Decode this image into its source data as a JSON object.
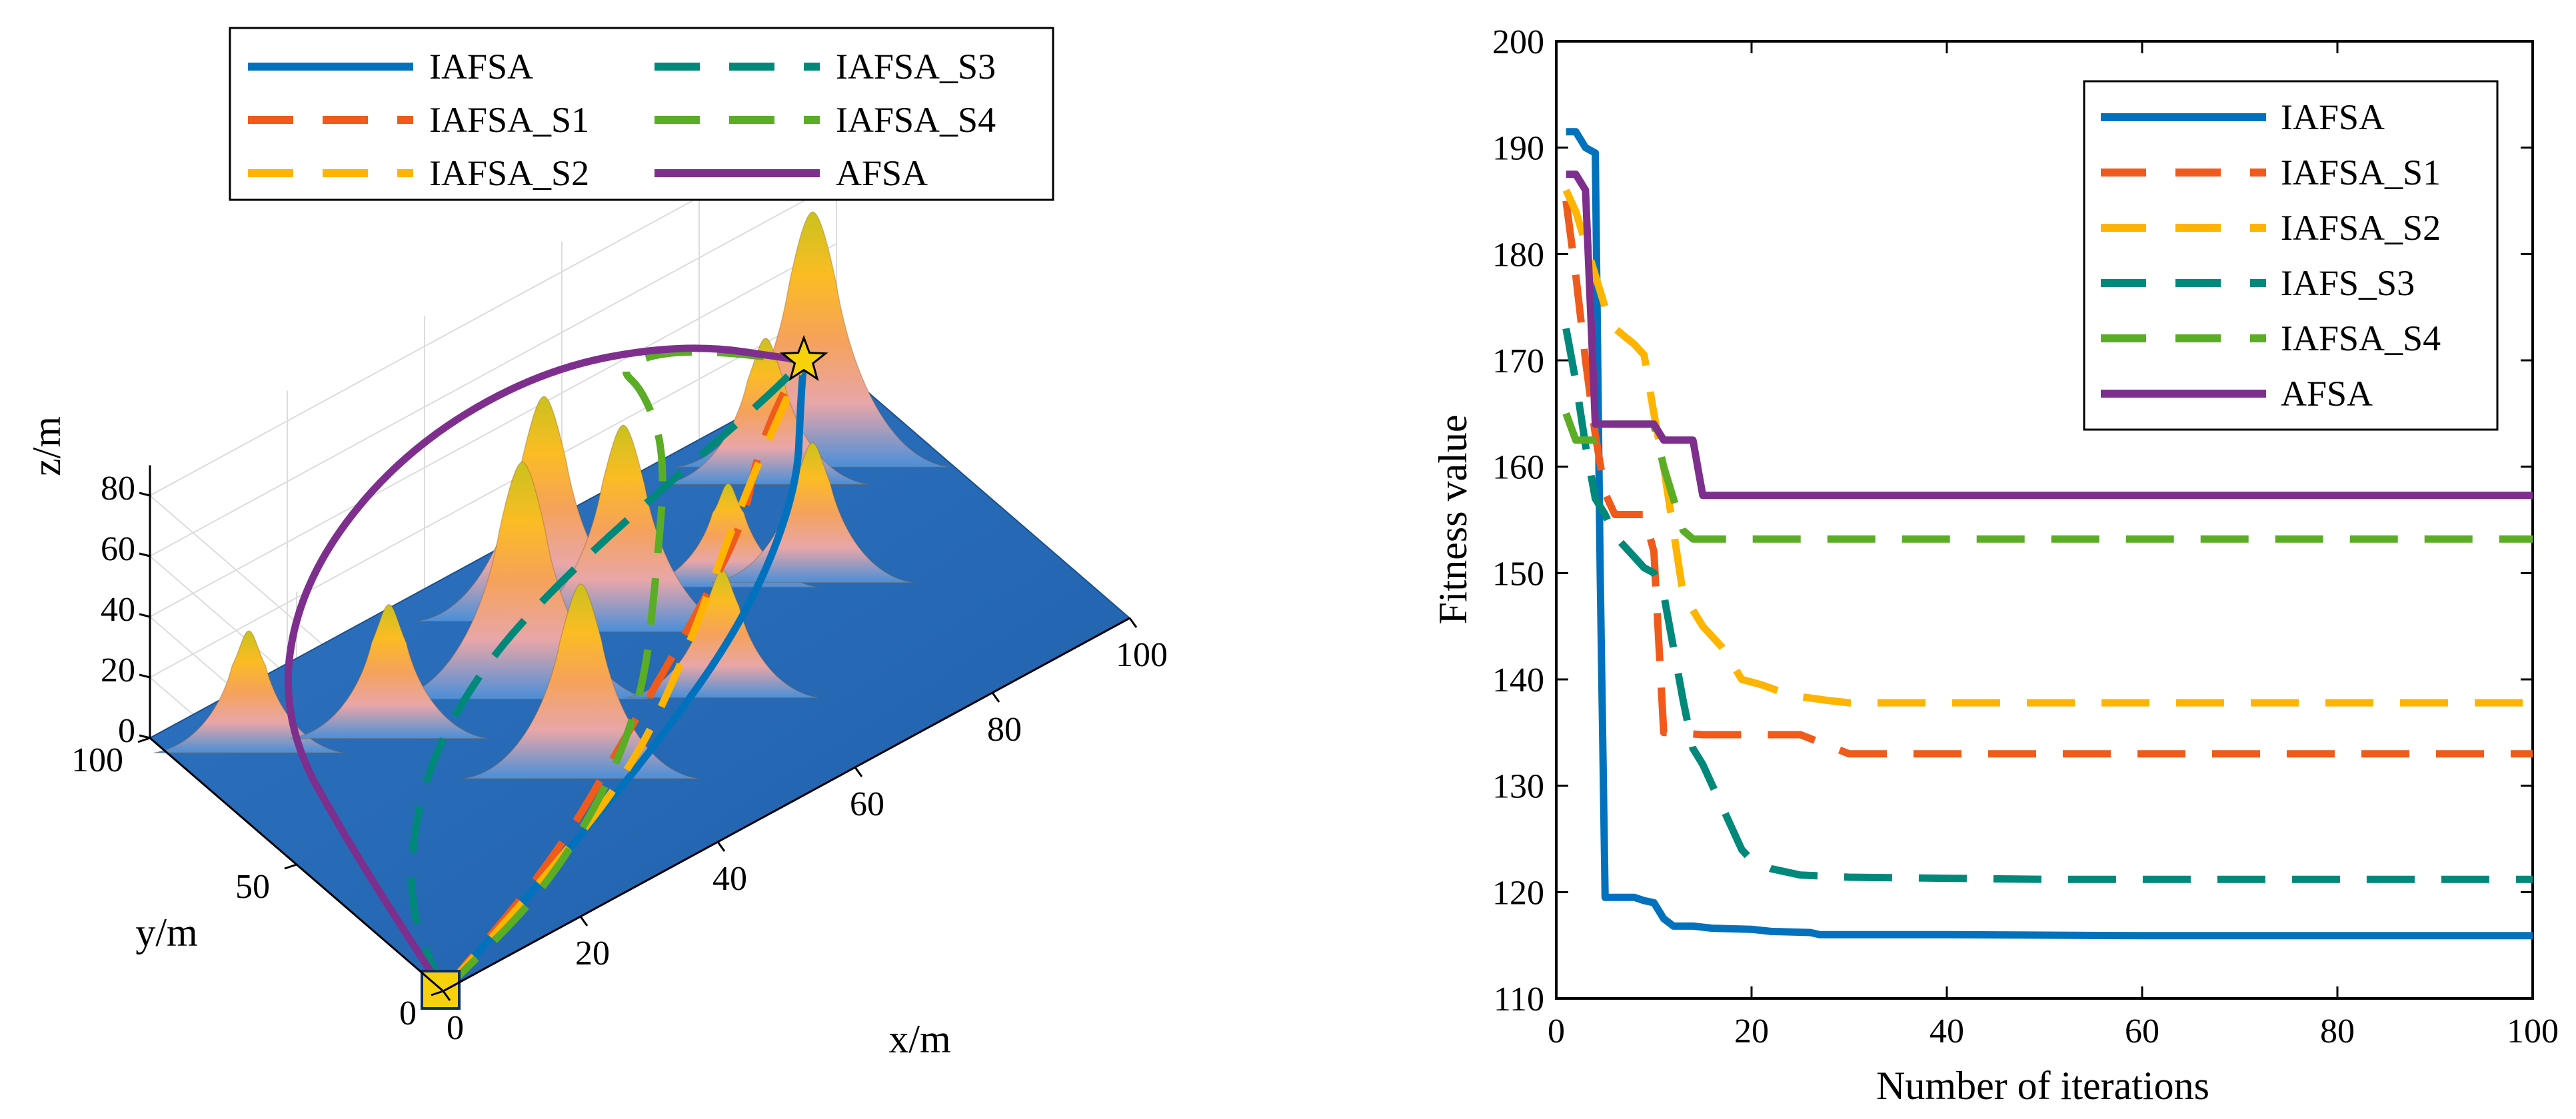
{
  "chart_data": [
    {
      "type": "surface3d",
      "xlabel": "x/m",
      "ylabel": "y/m",
      "zlabel": "z/m",
      "xticks": [
        0,
        20,
        40,
        60,
        80,
        100
      ],
      "yticks": [
        0,
        50,
        100
      ],
      "zticks": [
        0,
        20,
        40,
        60,
        80
      ],
      "xlim": [
        0,
        100
      ],
      "ylim": [
        0,
        100
      ],
      "zlim": [
        0,
        90
      ],
      "grid": true,
      "legend_placement": "top",
      "start_marker": "square",
      "goal_marker": "star",
      "peaks": [
        {
          "x": 8,
          "y": 85,
          "h": 38
        },
        {
          "x": 22,
          "y": 70,
          "h": 42
        },
        {
          "x": 38,
          "y": 62,
          "h": 76
        },
        {
          "x": 48,
          "y": 78,
          "h": 72
        },
        {
          "x": 54,
          "y": 65,
          "h": 66
        },
        {
          "x": 35,
          "y": 35,
          "h": 62
        },
        {
          "x": 56,
          "y": 36,
          "h": 40
        },
        {
          "x": 68,
          "y": 62,
          "h": 32
        },
        {
          "x": 82,
          "y": 82,
          "h": 46
        },
        {
          "x": 88,
          "y": 80,
          "h": 82
        },
        {
          "x": 76,
          "y": 52,
          "h": 44
        }
      ],
      "series": [
        {
          "name": "IAFSA",
          "color": "#0072BD",
          "dash": "solid",
          "path": [
            [
              0,
              0,
              0
            ],
            [
              20,
              12,
              3
            ],
            [
              40,
              24,
              8
            ],
            [
              60,
              38,
              16
            ],
            [
              75,
              55,
              26
            ],
            [
              82,
              70,
              36
            ],
            [
              85,
              76,
              40
            ]
          ]
        },
        {
          "name": "IAFSA_S1",
          "color": "#F05A1A",
          "dash": "dash",
          "path": [
            [
              0,
              0,
              0
            ],
            [
              22,
              14,
              4
            ],
            [
              40,
              30,
              12
            ],
            [
              55,
              42,
              22
            ],
            [
              66,
              52,
              30
            ],
            [
              72,
              62,
              35
            ],
            [
              80,
              72,
              38
            ],
            [
              85,
              76,
              40
            ]
          ]
        },
        {
          "name": "IAFSA_S2",
          "color": "#FFB400",
          "dash": "dash",
          "path": [
            [
              0,
              0,
              0
            ],
            [
              18,
              10,
              4
            ],
            [
              36,
              20,
              12
            ],
            [
              50,
              34,
              22
            ],
            [
              60,
              46,
              30
            ],
            [
              70,
              58,
              36
            ],
            [
              80,
              70,
              39
            ],
            [
              85,
              76,
              40
            ]
          ]
        },
        {
          "name": "IAFSA_S3",
          "color": "#00897B",
          "dash": "dash",
          "path": [
            [
              0,
              0,
              0
            ],
            [
              4,
              22,
              6
            ],
            [
              14,
              40,
              20
            ],
            [
              28,
              52,
              30
            ],
            [
              45,
              60,
              35
            ],
            [
              62,
              66,
              38
            ],
            [
              78,
              72,
              40
            ],
            [
              85,
              76,
              40
            ]
          ]
        },
        {
          "name": "IAFSA_S4",
          "color": "#5AAD25",
          "dash": "dash",
          "path": [
            [
              0,
              0,
              0
            ],
            [
              20,
              8,
              6
            ],
            [
              38,
              22,
              24
            ],
            [
              50,
              44,
              42
            ],
            [
              58,
              60,
              56
            ],
            [
              60,
              72,
              64
            ],
            [
              62,
              86,
              58
            ],
            [
              72,
              88,
              50
            ],
            [
              85,
              76,
              40
            ]
          ]
        },
        {
          "name": "AFSA",
          "color": "#7E2F8E",
          "dash": "solid",
          "path": [
            [
              0,
              0,
              0
            ],
            [
              0,
              30,
              20
            ],
            [
              2,
              60,
              36
            ],
            [
              14,
              82,
              48
            ],
            [
              34,
              96,
              54
            ],
            [
              56,
              100,
              52
            ],
            [
              74,
              92,
              46
            ],
            [
              85,
              76,
              40
            ]
          ]
        }
      ]
    },
    {
      "type": "line",
      "xlabel": "Number of iterations",
      "ylabel": "Fitness value",
      "xlim": [
        0,
        100
      ],
      "ylim": [
        110,
        200
      ],
      "xticks": [
        0,
        20,
        40,
        60,
        80,
        100
      ],
      "yticks": [
        110,
        120,
        130,
        140,
        150,
        160,
        170,
        180,
        190,
        200
      ],
      "legend_placement": "top-right",
      "grid": false,
      "series": [
        {
          "name": "IAFSA",
          "color": "#0072BD",
          "dash": "solid",
          "x": [
            1,
            2,
            3,
            4,
            4.5,
            5,
            6,
            8,
            9,
            10,
            11,
            12,
            14,
            16,
            20,
            22,
            26,
            27,
            30,
            40,
            60,
            80,
            100
          ],
          "y": [
            191.5,
            191.5,
            190,
            189.5,
            150,
            119.5,
            119.5,
            119.5,
            119.2,
            119,
            117.5,
            116.8,
            116.8,
            116.6,
            116.5,
            116.3,
            116.2,
            116,
            116,
            116,
            115.9,
            115.9,
            115.9
          ]
        },
        {
          "name": "IAFSA_S1",
          "color": "#F05A1A",
          "dash": "dash",
          "x": [
            1,
            2,
            3,
            4,
            5,
            6,
            8,
            9,
            10,
            11,
            12,
            15,
            20,
            25,
            30,
            50,
            70,
            100
          ],
          "y": [
            185,
            178,
            170,
            163,
            157.5,
            155.5,
            155.5,
            155.5,
            152,
            135,
            135,
            134.8,
            134.8,
            134.8,
            133,
            133,
            133,
            133
          ]
        },
        {
          "name": "IAFSA_S2",
          "color": "#FFB400",
          "dash": "dash",
          "x": [
            1,
            2,
            3,
            4,
            5,
            6,
            8,
            9,
            10,
            11,
            12,
            13,
            14,
            15,
            17,
            19,
            21,
            24,
            28,
            30,
            50,
            100
          ],
          "y": [
            186,
            184,
            181,
            178,
            175,
            173,
            171.5,
            170.5,
            165,
            160,
            154,
            148,
            146.5,
            145,
            143,
            140,
            139.5,
            138.5,
            138,
            137.8,
            137.8,
            137.8
          ]
        },
        {
          "name": "IAFS_S3",
          "color": "#00897B",
          "dash": "dash",
          "x": [
            1,
            2,
            3,
            4,
            5,
            6,
            8,
            9,
            10,
            11,
            12,
            13,
            14,
            15,
            16,
            17,
            18,
            19,
            20,
            22,
            25,
            30,
            50,
            100
          ],
          "y": [
            173,
            168,
            162,
            157,
            155.5,
            153.5,
            151.5,
            150.5,
            150,
            148,
            143,
            138,
            133.5,
            132,
            130,
            128,
            126,
            124,
            123,
            122.2,
            121.6,
            121.4,
            121.2,
            121.2
          ]
        },
        {
          "name": "IAFSA_S4",
          "color": "#5AAD25",
          "dash": "dash",
          "x": [
            1,
            2,
            3,
            4,
            5,
            7,
            9,
            10,
            11,
            12,
            13,
            14,
            15,
            20,
            100
          ],
          "y": [
            165,
            162.5,
            162.5,
            162.5,
            164,
            164,
            164,
            164,
            160,
            157,
            154,
            153.2,
            153.2,
            153.2,
            153.2
          ]
        },
        {
          "name": "AFSA",
          "color": "#7E2F8E",
          "dash": "solid",
          "x": [
            1,
            2,
            3,
            4,
            5,
            8,
            10,
            11,
            12,
            14,
            15,
            20,
            50,
            100
          ],
          "y": [
            187.5,
            187.5,
            186,
            164,
            164,
            164,
            164,
            162.5,
            162.5,
            162.5,
            157.3,
            157.3,
            157.3,
            157.3
          ]
        }
      ]
    }
  ]
}
